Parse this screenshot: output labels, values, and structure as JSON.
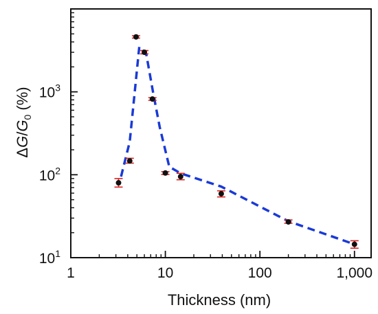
{
  "chart_data": {
    "type": "scatter",
    "xlabel": "Thickness (nm)",
    "ylabel": {
      "delta": "Δ",
      "G": "G",
      "slash": "/",
      "G0": "G",
      "sub0": "0",
      "unit": " (%)"
    },
    "xscale": "log",
    "yscale": "log",
    "xlim": [
      1,
      1500
    ],
    "ylim": [
      10,
      10000
    ],
    "x_ticks": [
      1,
      10,
      100,
      1000
    ],
    "x_tick_labels": [
      "1",
      "10",
      "100",
      "1,000"
    ],
    "y_ticks": [
      10,
      100,
      1000
    ],
    "y_tick_labels": [
      {
        "base": "10",
        "exp": "1"
      },
      {
        "base": "10",
        "exp": "2"
      },
      {
        "base": "10",
        "exp": "3"
      }
    ],
    "series": [
      {
        "kind": "points-with-error-bars",
        "x": [
          3.2,
          4.2,
          4.9,
          6.0,
          7.3,
          10,
          14.5,
          39,
          200,
          1000
        ],
        "y": [
          80,
          147,
          4600,
          3000,
          820,
          105,
          95,
          59,
          27,
          14.5
        ],
        "y_err_low": [
          71,
          138,
          4450,
          2870,
          790,
          101,
          87,
          54,
          26,
          13
        ],
        "y_err_high": [
          90,
          158,
          4750,
          3150,
          850,
          109,
          104,
          64,
          28.5,
          16
        ]
      },
      {
        "kind": "fit-line",
        "x": [
          3.4,
          4.2,
          5.3,
          6.3,
          7.4,
          8.7,
          11,
          14.5,
          39,
          200,
          1000
        ],
        "y": [
          95,
          250,
          3500,
          2800,
          1000,
          380,
          125,
          104,
          72,
          27.5,
          14.5
        ]
      }
    ],
    "colors": {
      "points": "#111111",
      "error_bars": "#e02020",
      "fit_line": "#1a3ad6",
      "axes": "#111111"
    },
    "grid": false,
    "legend": "none"
  }
}
